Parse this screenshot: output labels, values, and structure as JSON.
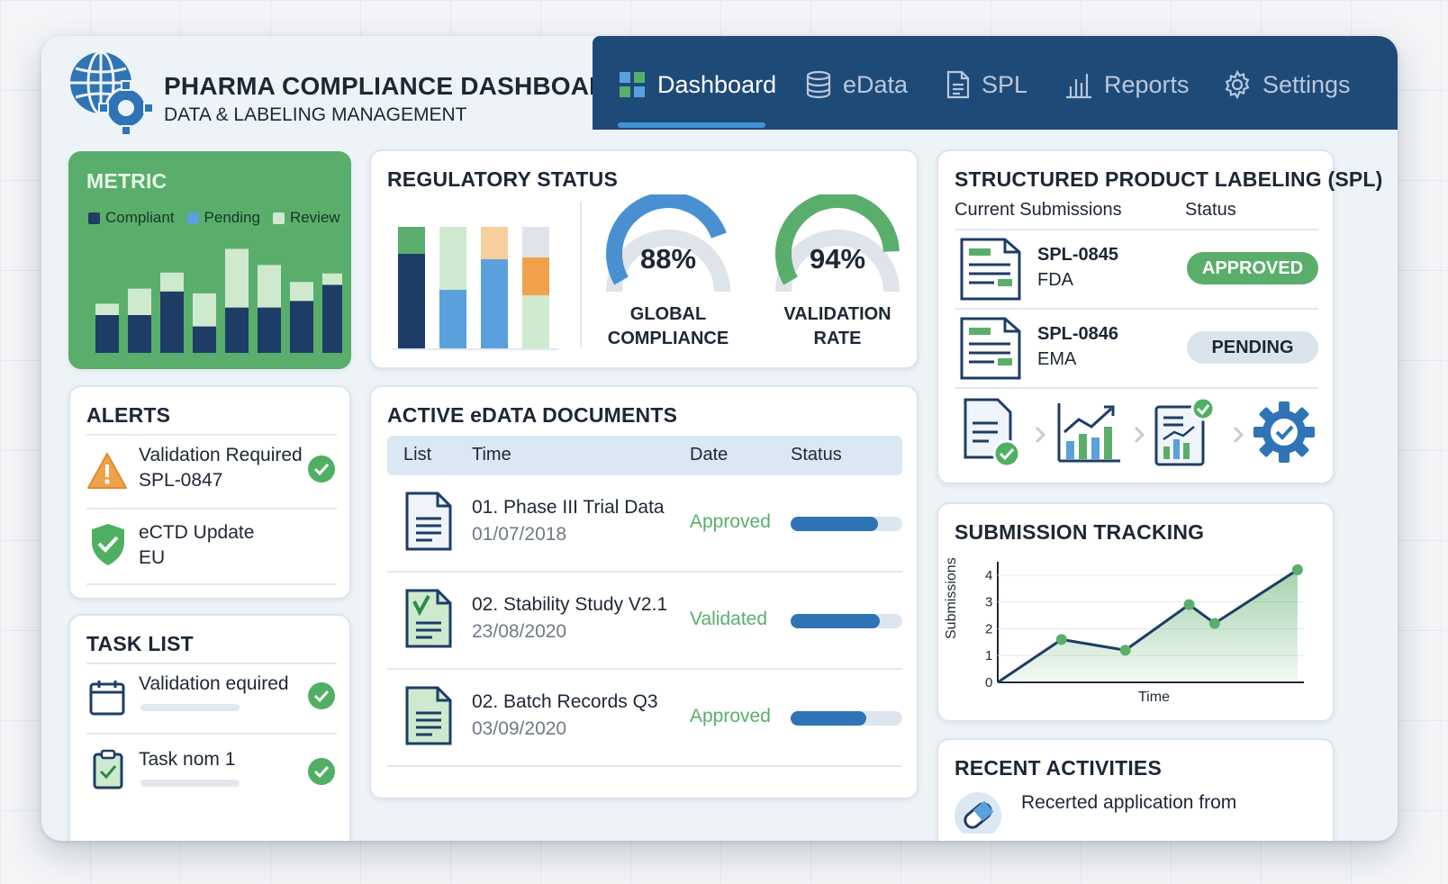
{
  "header": {
    "title": "PHARMA COMPLIANCE DASHBOARD",
    "subtitle": "DATA & LABELING MANAGEMENT",
    "nav": [
      {
        "label": "Dashboard",
        "icon": "grid-icon",
        "active": true
      },
      {
        "label": "eData",
        "icon": "database-icon"
      },
      {
        "label": "SPL",
        "icon": "document-icon"
      },
      {
        "label": "Reports",
        "icon": "bar-chart-icon"
      },
      {
        "label": "Settings",
        "icon": "gear-icon"
      }
    ]
  },
  "colors": {
    "nav_bg": "#1e4a78",
    "accent_green": "#5aae6c",
    "accent_blue": "#2f74b5",
    "light_blue": "#5aa0dc",
    "orange": "#f0a24b"
  },
  "metric": {
    "title": "METRIC",
    "legend": [
      "Compliant",
      "Pending",
      "Review"
    ],
    "chart_data": {
      "type": "bar",
      "series": [
        {
          "name": "Compliant",
          "values": [
            40,
            40,
            65,
            28,
            48,
            48,
            55,
            72
          ]
        },
        {
          "name": "Review",
          "values": [
            12,
            28,
            20,
            35,
            62,
            45,
            20,
            12
          ]
        }
      ],
      "ylim": [
        0,
        120
      ]
    }
  },
  "regulatory": {
    "title": "REGULATORY STATUS",
    "chart_data": {
      "type": "bar",
      "stacked": true,
      "series": [
        {
          "name": "Segment A",
          "values": [
            78,
            0,
            0,
            0
          ]
        },
        {
          "name": "Segment B",
          "values": [
            20,
            0,
            0,
            0
          ]
        }
      ]
    },
    "gauges": [
      {
        "value": 88,
        "label1": "GLOBAL",
        "label2": "COMPLIANCE",
        "display": "88%"
      },
      {
        "value": 94,
        "label1": "VALIDATION",
        "label2": "RATE",
        "display": "94%"
      }
    ]
  },
  "alerts": {
    "title": "ALERTS",
    "items": [
      {
        "line1": "Validation Required",
        "line2": "SPL-0847"
      },
      {
        "line1": "eCTD Update",
        "line2": "EU"
      }
    ]
  },
  "tasks": {
    "title": "TASK LIST",
    "items": [
      {
        "label": "Validation equired"
      },
      {
        "label": "Task nom 1"
      }
    ]
  },
  "documents": {
    "title": "ACTIVE eDATA DOCUMENTS",
    "columns": [
      "List",
      "Time",
      "Date",
      "Status"
    ],
    "rows": [
      {
        "name": "01. Phase III Trial Data",
        "date": "01/07/2018",
        "status": "Approved",
        "progress": 0.78
      },
      {
        "name": "02. Stability Study V2.1",
        "date": "23/08/2020",
        "status": "Validated",
        "progress": 0.8
      },
      {
        "name": "02. Batch Records Q3",
        "date": "03/09/2020",
        "status": "Approved",
        "progress": 0.68
      }
    ]
  },
  "spl": {
    "title": "STRUCTURED PRODUCT LABELING (SPL)",
    "col_submissions": "Current Submissions",
    "col_status": "Status",
    "rows": [
      {
        "id": "SPL-0845",
        "agency": "FDA",
        "status": "APPROVED"
      },
      {
        "id": "SPL-0846",
        "agency": "EMA",
        "status": "PENDING"
      }
    ]
  },
  "tracking": {
    "title": "SUBMISSION TRACKING",
    "chart_data": {
      "type": "area",
      "x": [
        0,
        1,
        2,
        3,
        3.4,
        4.7
      ],
      "y": [
        0,
        1.6,
        1.2,
        2.9,
        2.2,
        4.2
      ],
      "xlabel": "Time",
      "ylabel": "Submissions",
      "yticks": [
        "0",
        "1",
        "2",
        "3",
        "4"
      ],
      "ylim": [
        0,
        4.5
      ]
    }
  },
  "activities": {
    "title": "RECENT ACTIVITIES",
    "items": [
      {
        "text": "Recerted application from"
      }
    ]
  }
}
